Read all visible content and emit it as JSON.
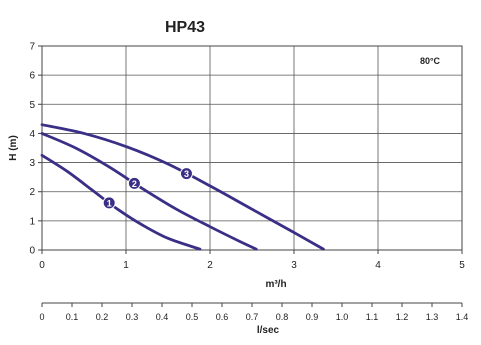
{
  "chart_data": {
    "type": "line",
    "title": "HP43",
    "annotation": "80°C",
    "xlabel": "m³/h",
    "ylabel": "H (m)",
    "xlim": [
      0,
      5
    ],
    "ylim": [
      0,
      7
    ],
    "x_ticks": [
      0,
      1,
      2,
      3,
      4,
      5
    ],
    "y_ticks": [
      0,
      1,
      2,
      3,
      4,
      5,
      6,
      7
    ],
    "grid": true,
    "secondary_xaxis": {
      "label": "l/sec",
      "ticks": [
        "0",
        "0.1",
        "0.2",
        "0.3",
        "0.4",
        "0.5",
        "0.6",
        "0.7",
        "0.8",
        "0.9",
        "1.0",
        "1.1",
        "1.2",
        "1.3",
        "1.4"
      ]
    },
    "line_color": "#3a2f86",
    "series": [
      {
        "name": "1",
        "marker_at": 0.8,
        "points": [
          [
            0,
            3.25
          ],
          [
            0.3,
            2.7
          ],
          [
            0.6,
            2.05
          ],
          [
            0.9,
            1.4
          ],
          [
            1.2,
            0.85
          ],
          [
            1.5,
            0.4
          ],
          [
            1.88,
            0.03
          ]
        ]
      },
      {
        "name": "2",
        "marker_at": 1.1,
        "points": [
          [
            0,
            4.0
          ],
          [
            0.4,
            3.5
          ],
          [
            0.8,
            2.85
          ],
          [
            1.2,
            2.1
          ],
          [
            1.6,
            1.4
          ],
          [
            2.0,
            0.8
          ],
          [
            2.35,
            0.3
          ],
          [
            2.55,
            0.03
          ]
        ]
      },
      {
        "name": "3",
        "marker_at": 1.72,
        "points": [
          [
            0,
            4.3
          ],
          [
            0.5,
            4.0
          ],
          [
            1.0,
            3.55
          ],
          [
            1.5,
            2.95
          ],
          [
            2.0,
            2.2
          ],
          [
            2.5,
            1.4
          ],
          [
            3.0,
            0.6
          ],
          [
            3.35,
            0.03
          ]
        ]
      }
    ]
  }
}
